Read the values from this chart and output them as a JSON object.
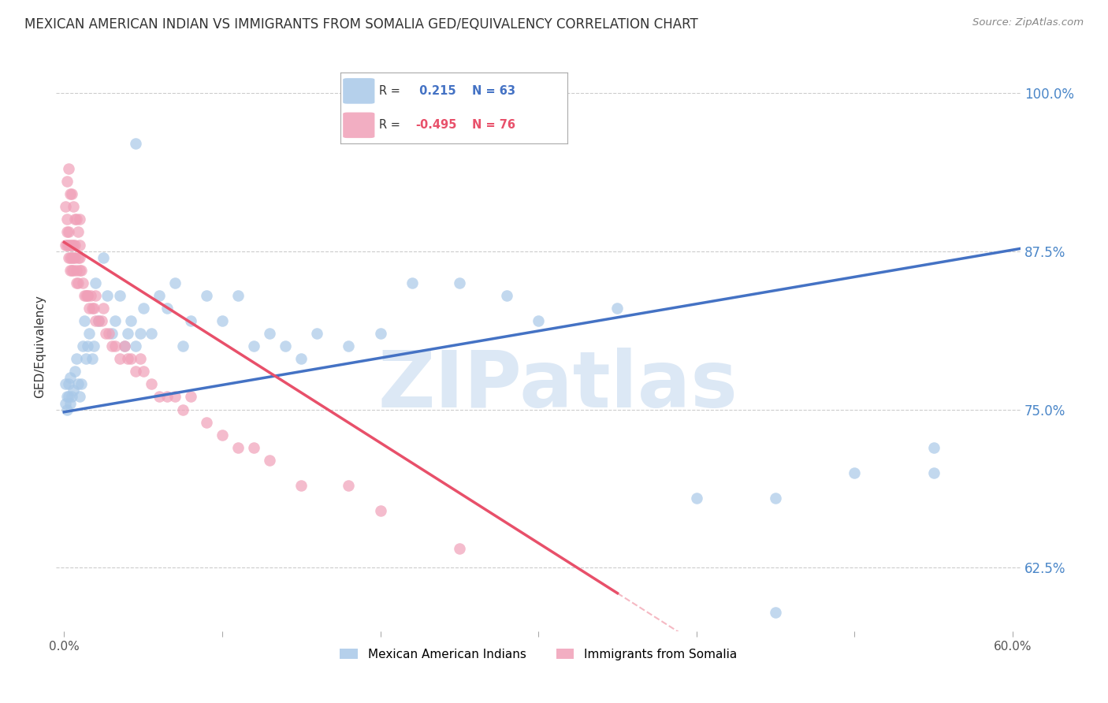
{
  "title": "MEXICAN AMERICAN INDIAN VS IMMIGRANTS FROM SOMALIA GED/EQUIVALENCY CORRELATION CHART",
  "source": "Source: ZipAtlas.com",
  "xlabel_ticks": [
    "0.0%",
    "",
    "",
    "",
    "",
    "",
    "60.0%"
  ],
  "xlabel_tick_values": [
    0.0,
    0.1,
    0.2,
    0.3,
    0.4,
    0.5,
    0.6
  ],
  "ylabel_ticks": [
    "100.0%",
    "87.5%",
    "75.0%",
    "62.5%"
  ],
  "ylabel_tick_values": [
    1.0,
    0.875,
    0.75,
    0.625
  ],
  "xlim": [
    -0.005,
    0.605
  ],
  "ylim": [
    0.575,
    1.025
  ],
  "ylabel": "GED/Equivalency",
  "blue_label": "Mexican American Indians",
  "pink_label": "Immigrants from Somalia",
  "blue_R": " 0.215",
  "blue_N": "63",
  "pink_R": "-0.495",
  "pink_N": "76",
  "blue_color": "#a8c8e8",
  "pink_color": "#f0a0b8",
  "trend_blue": "#4472c4",
  "trend_pink": "#e8506a",
  "watermark": "ZIPatlas",
  "watermark_color": "#dce8f5",
  "background_color": "#ffffff",
  "grid_color": "#cccccc",
  "title_color": "#333333",
  "axis_label_color": "#333333",
  "right_tick_color": "#4a86c8",
  "blue_trend_x0": 0.0,
  "blue_trend_y0": 0.748,
  "blue_trend_x1": 0.605,
  "blue_trend_y1": 0.877,
  "pink_trend_x0": 0.0,
  "pink_trend_y0": 0.882,
  "pink_trend_x1": 0.35,
  "pink_trend_y1": 0.605,
  "blue_scatter_x": [
    0.001,
    0.001,
    0.002,
    0.002,
    0.003,
    0.003,
    0.004,
    0.004,
    0.005,
    0.006,
    0.007,
    0.008,
    0.009,
    0.01,
    0.011,
    0.012,
    0.013,
    0.014,
    0.015,
    0.016,
    0.018,
    0.019,
    0.02,
    0.022,
    0.025,
    0.027,
    0.03,
    0.032,
    0.035,
    0.038,
    0.04,
    0.042,
    0.045,
    0.048,
    0.05,
    0.055,
    0.06,
    0.065,
    0.07,
    0.075,
    0.08,
    0.09,
    0.1,
    0.11,
    0.12,
    0.13,
    0.14,
    0.15,
    0.16,
    0.18,
    0.2,
    0.22,
    0.25,
    0.28,
    0.3,
    0.35,
    0.4,
    0.45,
    0.5,
    0.55,
    0.045,
    0.55,
    0.45
  ],
  "blue_scatter_y": [
    0.755,
    0.77,
    0.76,
    0.75,
    0.76,
    0.77,
    0.755,
    0.775,
    0.76,
    0.765,
    0.78,
    0.79,
    0.77,
    0.76,
    0.77,
    0.8,
    0.82,
    0.79,
    0.8,
    0.81,
    0.79,
    0.8,
    0.85,
    0.82,
    0.87,
    0.84,
    0.81,
    0.82,
    0.84,
    0.8,
    0.81,
    0.82,
    0.8,
    0.81,
    0.83,
    0.81,
    0.84,
    0.83,
    0.85,
    0.8,
    0.82,
    0.84,
    0.82,
    0.84,
    0.8,
    0.81,
    0.8,
    0.79,
    0.81,
    0.8,
    0.81,
    0.85,
    0.85,
    0.84,
    0.82,
    0.83,
    0.68,
    0.68,
    0.7,
    0.72,
    0.96,
    0.7,
    0.59
  ],
  "pink_scatter_x": [
    0.001,
    0.001,
    0.002,
    0.002,
    0.002,
    0.003,
    0.003,
    0.003,
    0.004,
    0.004,
    0.004,
    0.005,
    0.005,
    0.005,
    0.006,
    0.006,
    0.006,
    0.007,
    0.007,
    0.008,
    0.008,
    0.009,
    0.009,
    0.01,
    0.01,
    0.01,
    0.011,
    0.012,
    0.013,
    0.014,
    0.015,
    0.016,
    0.017,
    0.018,
    0.019,
    0.02,
    0.022,
    0.024,
    0.026,
    0.028,
    0.03,
    0.032,
    0.035,
    0.038,
    0.04,
    0.042,
    0.045,
    0.048,
    0.05,
    0.055,
    0.06,
    0.065,
    0.07,
    0.075,
    0.08,
    0.09,
    0.1,
    0.11,
    0.12,
    0.13,
    0.002,
    0.003,
    0.004,
    0.005,
    0.006,
    0.007,
    0.008,
    0.009,
    0.01,
    0.015,
    0.02,
    0.025,
    0.15,
    0.18,
    0.2,
    0.25
  ],
  "pink_scatter_y": [
    0.88,
    0.91,
    0.89,
    0.88,
    0.9,
    0.88,
    0.89,
    0.87,
    0.87,
    0.88,
    0.86,
    0.87,
    0.88,
    0.86,
    0.88,
    0.87,
    0.86,
    0.87,
    0.88,
    0.86,
    0.85,
    0.85,
    0.87,
    0.86,
    0.87,
    0.88,
    0.86,
    0.85,
    0.84,
    0.84,
    0.84,
    0.83,
    0.84,
    0.83,
    0.83,
    0.82,
    0.82,
    0.82,
    0.81,
    0.81,
    0.8,
    0.8,
    0.79,
    0.8,
    0.79,
    0.79,
    0.78,
    0.79,
    0.78,
    0.77,
    0.76,
    0.76,
    0.76,
    0.75,
    0.76,
    0.74,
    0.73,
    0.72,
    0.72,
    0.71,
    0.93,
    0.94,
    0.92,
    0.92,
    0.91,
    0.9,
    0.9,
    0.89,
    0.9,
    0.84,
    0.84,
    0.83,
    0.69,
    0.69,
    0.67,
    0.64
  ]
}
